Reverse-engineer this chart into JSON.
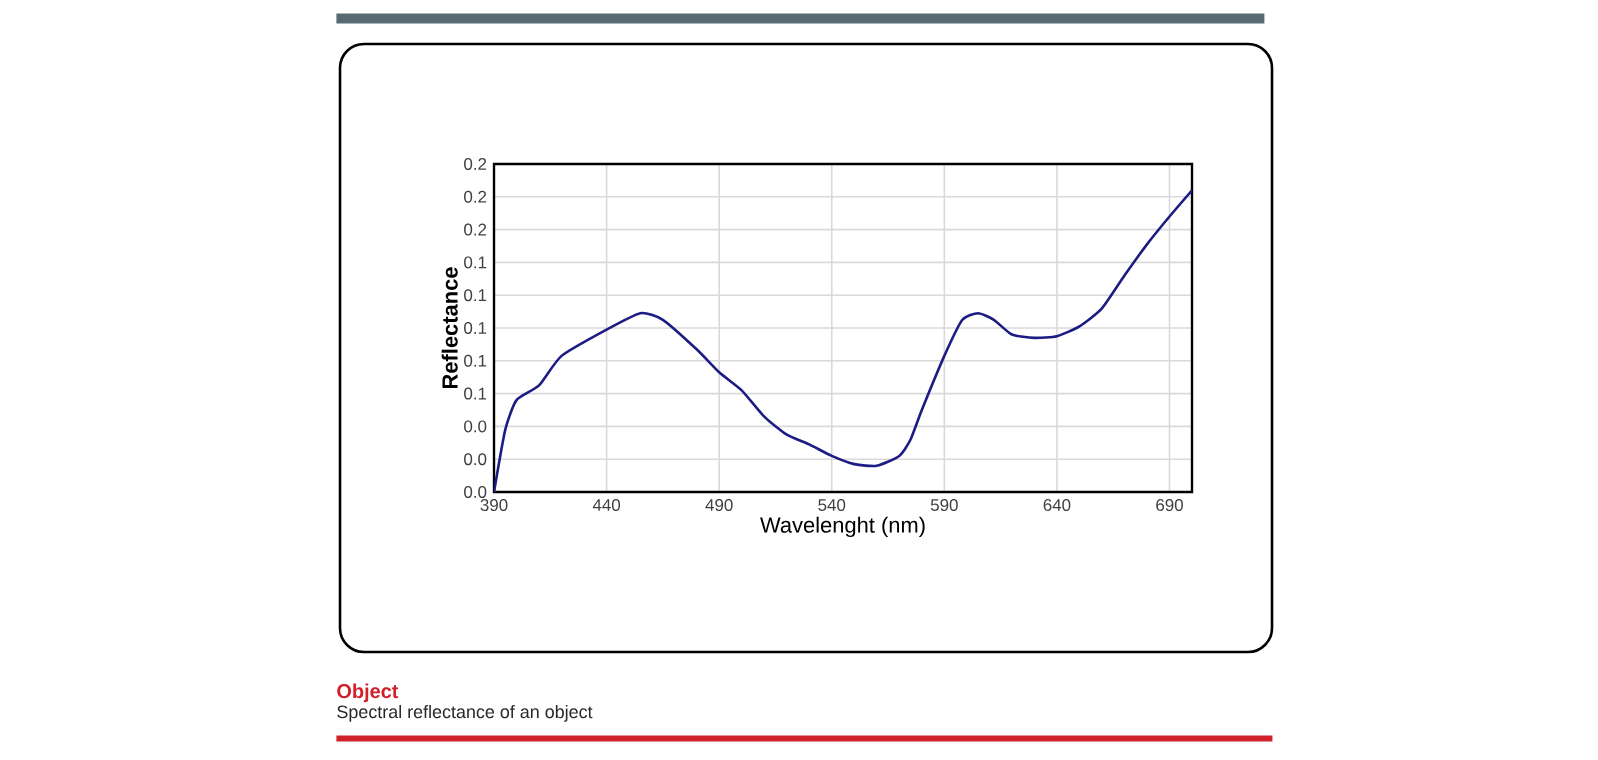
{
  "chart_data": {
    "type": "line",
    "title": "Object",
    "subtitle": "Spectral reflectance of an object",
    "xlabel": "Wavelenght (nm)",
    "ylabel": "Reflectance",
    "x": [
      390,
      395,
      400,
      410,
      420,
      440,
      455,
      465,
      480,
      490,
      500,
      510,
      520,
      530,
      540,
      550,
      560,
      570,
      575,
      580,
      590,
      598,
      605,
      612,
      620,
      630,
      640,
      650,
      660,
      670,
      680,
      690,
      700
    ],
    "series": [
      {
        "color": "#1c1c84",
        "values": [
          0.0,
          0.038,
          0.056,
          0.065,
          0.083,
          0.099,
          0.109,
          0.105,
          0.087,
          0.073,
          0.062,
          0.046,
          0.035,
          0.029,
          0.022,
          0.017,
          0.016,
          0.022,
          0.032,
          0.05,
          0.083,
          0.105,
          0.109,
          0.105,
          0.096,
          0.094,
          0.095,
          0.101,
          0.112,
          0.132,
          0.151,
          0.168,
          0.184
        ]
      }
    ],
    "xlim": [
      390,
      700
    ],
    "xticks": [
      390,
      440,
      490,
      540,
      590,
      640,
      690
    ],
    "ylim": [
      0,
      0.2
    ],
    "yticks": [
      {
        "value": 0,
        "label": "0.0"
      },
      {
        "value": 0.02,
        "label": "0.0"
      },
      {
        "value": 0.04,
        "label": "0.0"
      },
      {
        "value": 0.06,
        "label": "0.1"
      },
      {
        "value": 0.08,
        "label": "0.1"
      },
      {
        "value": 0.1,
        "label": "0.1"
      },
      {
        "value": 0.12,
        "label": "0.1"
      },
      {
        "value": 0.14,
        "label": "0.1"
      },
      {
        "value": 0.16,
        "label": "0.2"
      },
      {
        "value": 0.18,
        "label": "0.2"
      },
      {
        "value": 0.2,
        "label": "0.2"
      }
    ],
    "grid": true,
    "marker": "none",
    "line_style": "solid"
  }
}
